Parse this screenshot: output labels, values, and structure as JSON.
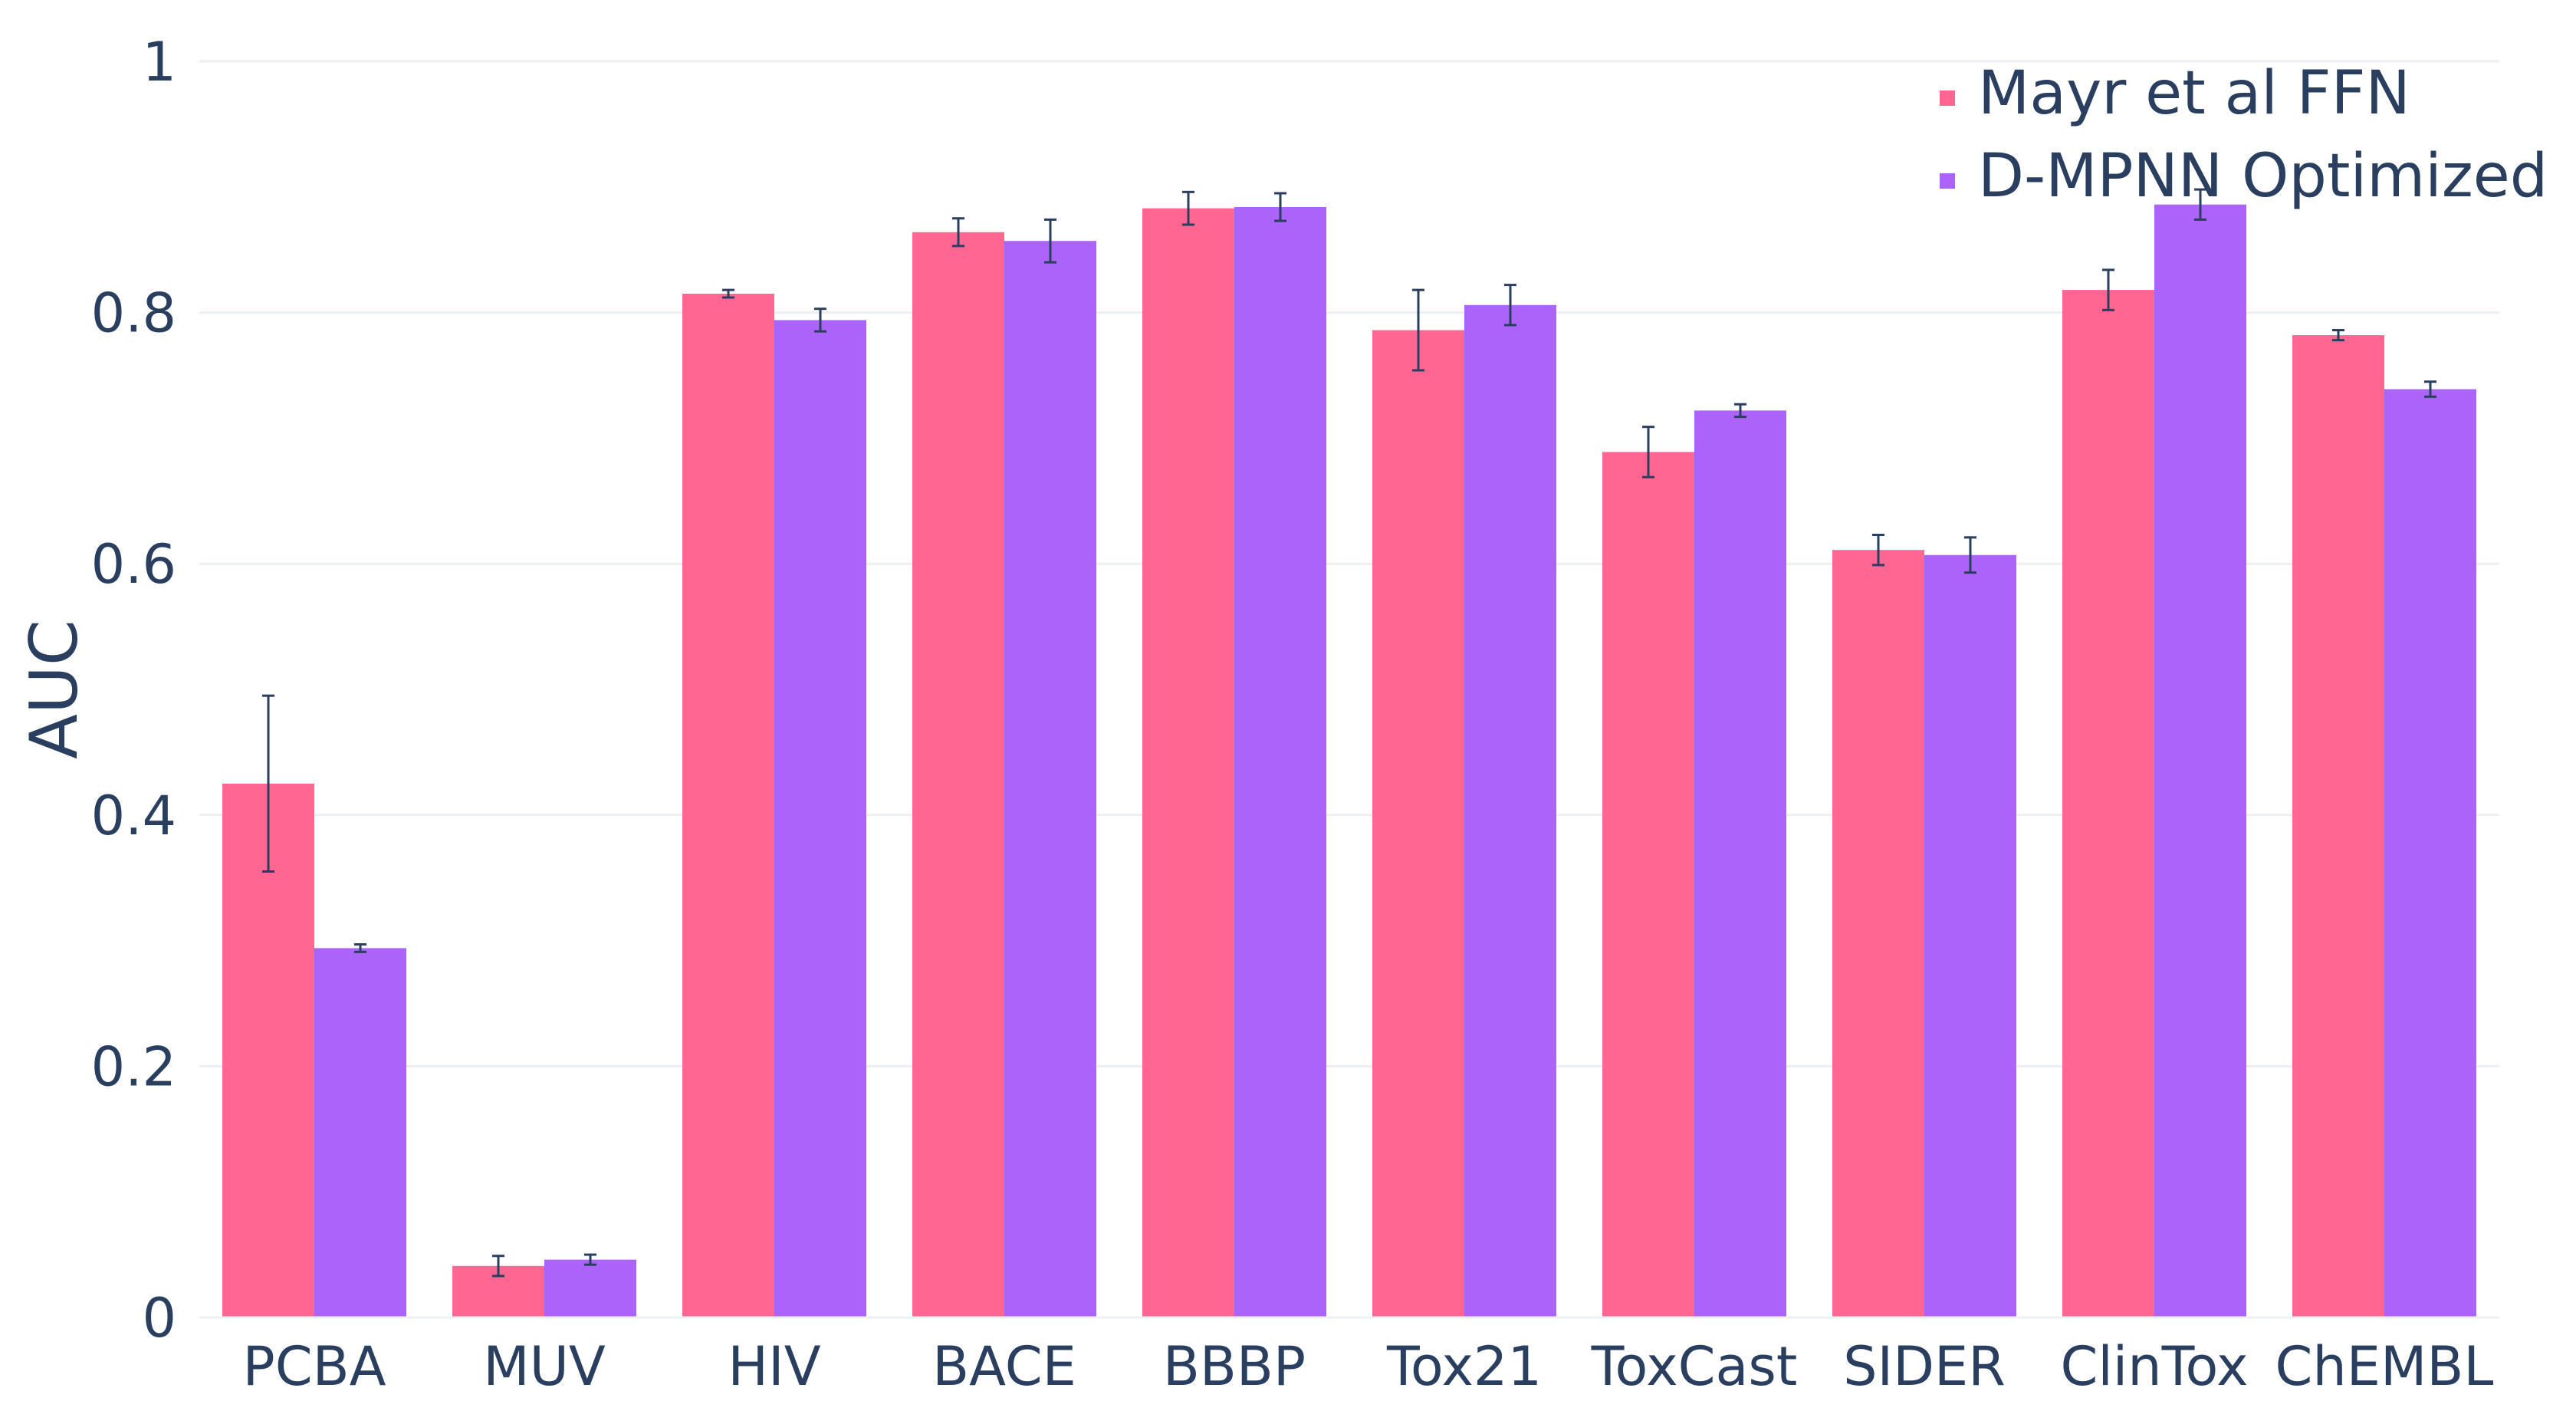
{
  "chart_data": {
    "type": "bar",
    "title": "",
    "xlabel": "",
    "ylabel": "AUC",
    "ylim": [
      0,
      1
    ],
    "yticks": [
      0,
      0.2,
      0.4,
      0.6,
      0.8,
      1
    ],
    "ytick_labels": [
      "0",
      "0.2",
      "0.4",
      "0.6",
      "0.8",
      "1"
    ],
    "grid": true,
    "legend_position": "top-right",
    "categories": [
      "PCBA",
      "MUV",
      "HIV",
      "BACE",
      "BBBP",
      "Tox21",
      "ToxCast",
      "SIDER",
      "ClinTox",
      "ChEMBL"
    ],
    "series": [
      {
        "name": "Mayr et al FFN",
        "color": "#ff6692",
        "values": [
          0.425,
          0.041,
          0.815,
          0.864,
          0.883,
          0.786,
          0.689,
          0.611,
          0.818,
          0.782
        ],
        "errors": [
          0.07,
          0.008,
          0.003,
          0.011,
          0.013,
          0.032,
          0.02,
          0.012,
          0.016,
          0.004
        ]
      },
      {
        "name": "D-MPNN Optimized",
        "color": "#ab63fa",
        "values": [
          0.294,
          0.046,
          0.794,
          0.857,
          0.884,
          0.806,
          0.722,
          0.607,
          0.886,
          0.739
        ],
        "errors": [
          0.003,
          0.004,
          0.009,
          0.017,
          0.011,
          0.016,
          0.005,
          0.014,
          0.012,
          0.006
        ]
      }
    ]
  }
}
